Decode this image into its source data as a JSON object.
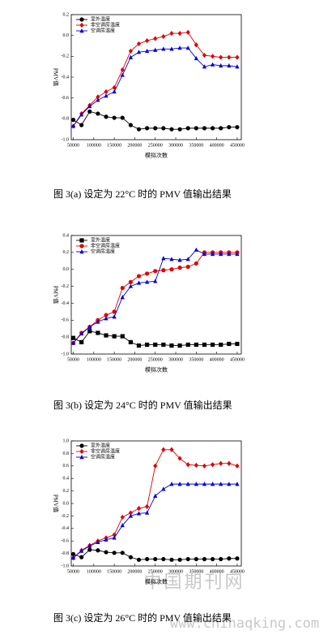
{
  "chart_data": [
    {
      "type": "line",
      "caption": "图 3(a)  设定为 22°C 时的 PMV 值输出结果",
      "xlabel": "模拟次数",
      "ylabel": "PMV值",
      "x": [
        50000,
        70000,
        90000,
        110000,
        130000,
        150000,
        170000,
        190000,
        210000,
        230000,
        250000,
        270000,
        290000,
        310000,
        330000,
        350000,
        370000,
        390000,
        410000,
        430000,
        450000
      ],
      "xlim": [
        45000,
        460000
      ],
      "xticks": [
        50000,
        100000,
        150000,
        200000,
        250000,
        300000,
        350000,
        400000,
        450000
      ],
      "ylim": [
        -1,
        0.2
      ],
      "yticks": [
        {
          "value": -1,
          "label": "-1.0"
        },
        -0.8,
        -0.6,
        -0.4,
        -0.2,
        {
          "value": 0,
          "label": "0.0"
        },
        0.2
      ],
      "legend": "upper left",
      "series": [
        {
          "name": "室外温度",
          "color": "#000000",
          "marker": "circle",
          "values": [
            -0.81,
            -0.86,
            -0.73,
            -0.75,
            -0.78,
            -0.79,
            -0.79,
            -0.86,
            -0.9,
            -0.89,
            -0.89,
            -0.89,
            -0.9,
            -0.9,
            -0.89,
            -0.89,
            -0.89,
            -0.89,
            -0.89,
            -0.88,
            -0.88
          ]
        },
        {
          "name": "非空调房温度",
          "color": "#e00000",
          "marker": "diamond",
          "values": [
            -0.87,
            -0.75,
            -0.67,
            -0.59,
            -0.54,
            -0.5,
            -0.33,
            -0.15,
            -0.08,
            -0.05,
            -0.03,
            -0.01,
            0.02,
            0.02,
            0.03,
            -0.09,
            -0.19,
            -0.2,
            -0.21,
            -0.21,
            -0.21
          ]
        },
        {
          "name": "空调房温度",
          "color": "#0000e0",
          "marker": "triangle",
          "values": [
            -0.87,
            -0.76,
            -0.68,
            -0.62,
            -0.58,
            -0.54,
            -0.38,
            -0.21,
            -0.16,
            -0.15,
            -0.14,
            -0.13,
            -0.13,
            -0.12,
            -0.12,
            -0.22,
            -0.3,
            -0.28,
            -0.29,
            -0.29,
            -0.3
          ]
        }
      ]
    },
    {
      "type": "line",
      "caption": "图 3(b)  设定为 24°C 时的 PMV 值输出结果",
      "xlabel": "模拟次数",
      "ylabel": "PMV值",
      "x": [
        50000,
        70000,
        90000,
        110000,
        130000,
        150000,
        170000,
        190000,
        210000,
        230000,
        250000,
        270000,
        290000,
        310000,
        330000,
        350000,
        370000,
        390000,
        410000,
        430000,
        450000
      ],
      "xlim": [
        45000,
        460000
      ],
      "xticks": [
        50000,
        100000,
        150000,
        200000,
        250000,
        300000,
        350000,
        400000,
        450000
      ],
      "ylim": [
        -1,
        0.4
      ],
      "yticks": [
        {
          "value": -1,
          "label": "-1.0"
        },
        -0.8,
        -0.6,
        -0.4,
        -0.2,
        {
          "value": 0,
          "label": "0.0"
        },
        0.2,
        0.4
      ],
      "legend": "upper left",
      "series": [
        {
          "name": "室外温度",
          "color": "#000000",
          "marker": "square",
          "values": [
            -0.81,
            -0.86,
            -0.73,
            -0.75,
            -0.78,
            -0.79,
            -0.79,
            -0.86,
            -0.9,
            -0.89,
            -0.89,
            -0.89,
            -0.9,
            -0.9,
            -0.89,
            -0.89,
            -0.89,
            -0.89,
            -0.89,
            -0.88,
            -0.88
          ]
        },
        {
          "name": "非空调房温度",
          "color": "#e00000",
          "marker": "circle",
          "values": [
            -0.87,
            -0.75,
            -0.68,
            -0.6,
            -0.54,
            -0.5,
            -0.22,
            -0.15,
            -0.08,
            -0.05,
            -0.02,
            -0.01,
            0,
            0.02,
            0.03,
            0.07,
            0.2,
            0.2,
            0.2,
            0.2,
            0.2
          ]
        },
        {
          "name": "空调房温度",
          "color": "#0000e0",
          "marker": "triangle",
          "values": [
            -0.87,
            -0.76,
            -0.68,
            -0.62,
            -0.58,
            -0.56,
            -0.33,
            -0.2,
            -0.16,
            -0.15,
            -0.14,
            0.13,
            0.12,
            0.11,
            0.12,
            0.23,
            0.18,
            0.18,
            0.18,
            0.18,
            0.18
          ]
        }
      ]
    },
    {
      "type": "line",
      "caption": "图 3(c)  设定为 26°C 时的 PMV 值输出结果",
      "xlabel": "模拟次数",
      "ylabel": "PMV值",
      "x": [
        50000,
        70000,
        90000,
        110000,
        130000,
        150000,
        170000,
        190000,
        210000,
        230000,
        250000,
        270000,
        290000,
        310000,
        330000,
        350000,
        370000,
        390000,
        410000,
        430000,
        450000
      ],
      "xlim": [
        45000,
        460000
      ],
      "xticks": [
        50000,
        100000,
        150000,
        200000,
        250000,
        300000,
        350000,
        400000,
        450000
      ],
      "ylim": [
        -1,
        1
      ],
      "yticks": [
        {
          "value": -1,
          "label": "-1.0"
        },
        -0.8,
        -0.6,
        -0.4,
        -0.2,
        {
          "value": 0,
          "label": "0.0"
        },
        0.2,
        0.4,
        0.6,
        0.8,
        {
          "value": 1,
          "label": "1.0"
        }
      ],
      "legend": "upper left",
      "series": [
        {
          "name": "室外温度",
          "color": "#000000",
          "marker": "circle",
          "values": [
            -0.81,
            -0.86,
            -0.74,
            -0.75,
            -0.78,
            -0.79,
            -0.79,
            -0.86,
            -0.9,
            -0.89,
            -0.89,
            -0.89,
            -0.9,
            -0.9,
            -0.89,
            -0.89,
            -0.89,
            -0.89,
            -0.89,
            -0.88,
            -0.88
          ]
        },
        {
          "name": "非空调房温度",
          "color": "#e00000",
          "marker": "diamond",
          "values": [
            -0.87,
            -0.75,
            -0.67,
            -0.6,
            -0.55,
            -0.5,
            -0.22,
            -0.15,
            -0.08,
            -0.05,
            0.6,
            0.86,
            0.86,
            0.72,
            0.62,
            0.61,
            0.6,
            0.62,
            0.64,
            0.64,
            0.6
          ]
        },
        {
          "name": "空调房温度",
          "color": "#0000e0",
          "marker": "triangle",
          "values": [
            -0.87,
            -0.76,
            -0.68,
            -0.62,
            -0.58,
            -0.55,
            -0.35,
            -0.2,
            -0.16,
            -0.15,
            0.12,
            0.23,
            0.31,
            0.31,
            0.31,
            0.31,
            0.31,
            0.31,
            0.31,
            0.31,
            0.31
          ]
        }
      ]
    }
  ],
  "watermark": [
    "中国期刊网",
    "www.chinaqking.com"
  ]
}
